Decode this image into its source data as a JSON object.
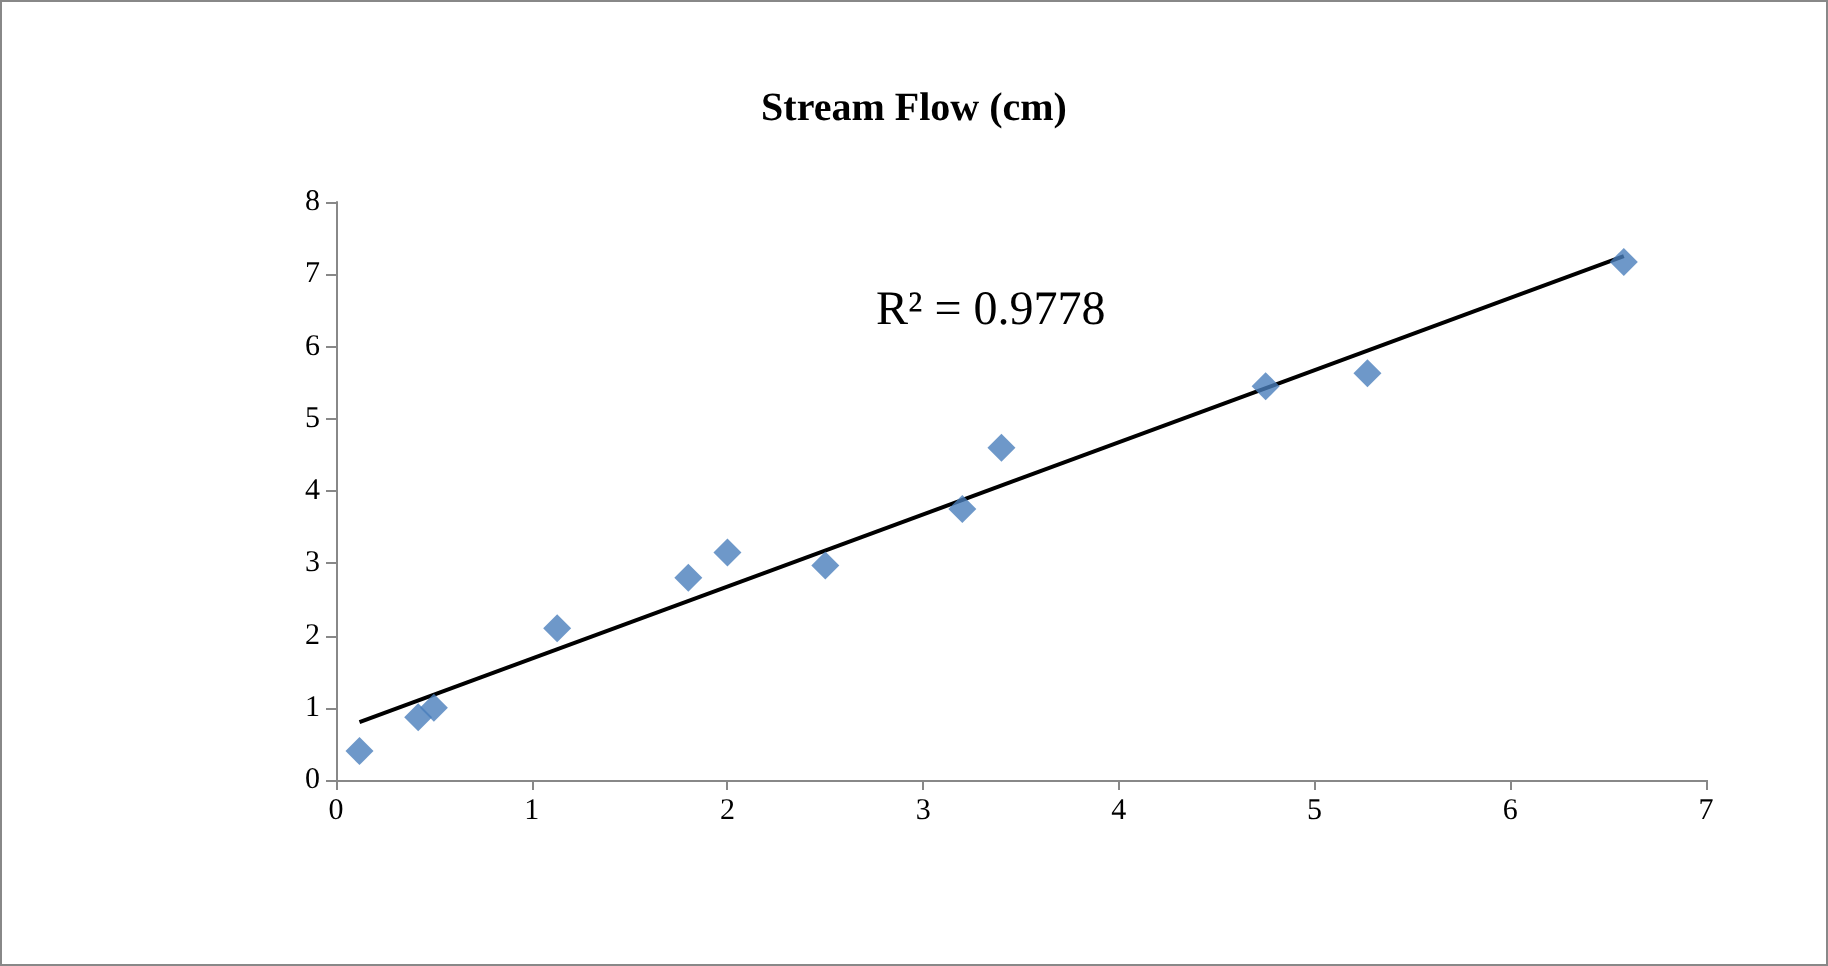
{
  "chart_data": {
    "type": "scatter",
    "title": "Stream Flow (cm)",
    "series": [
      {
        "color": "#4a7ebb",
        "marker": "diamond",
        "x": [
          0.12,
          0.42,
          0.5,
          1.13,
          1.8,
          2.0,
          2.5,
          3.2,
          3.4,
          4.75,
          5.27,
          6.58
        ],
        "values": [
          0.4,
          0.87,
          1.0,
          2.1,
          2.8,
          3.15,
          2.97,
          3.75,
          4.6,
          5.45,
          5.63,
          7.17
        ]
      },
      {
        "type": "line",
        "color": "#000000",
        "marker": "none",
        "x": [
          0.12,
          6.58
        ],
        "values": [
          0.8,
          7.25
        ]
      }
    ],
    "annotations": [
      "R² = 0.9778"
    ],
    "xlim": [
      0,
      7
    ],
    "xticks": [
      0,
      1,
      2,
      3,
      4,
      5,
      6,
      7
    ],
    "ylim": [
      0,
      8
    ],
    "yticks": [
      0,
      1,
      2,
      3,
      4,
      5,
      6,
      7,
      8
    ],
    "grid": false
  }
}
